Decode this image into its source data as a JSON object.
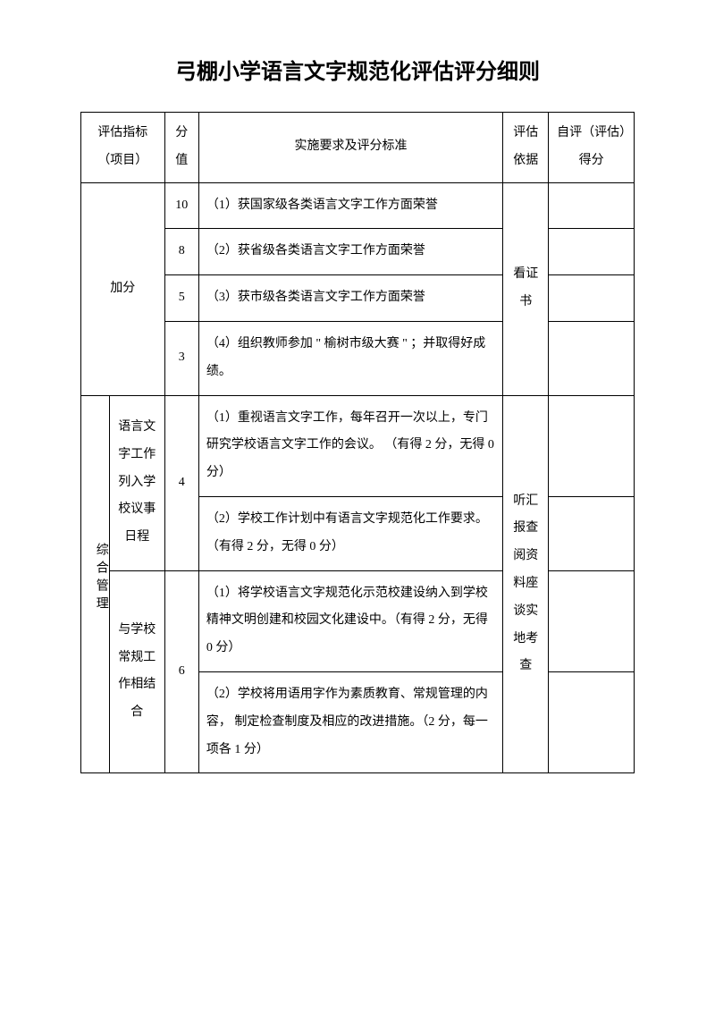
{
  "title": "弓棚小学语言文字规范化评估评分细则",
  "headers": {
    "col_indicator": "评估指标（项目）",
    "col_score": "分值",
    "col_criteria": "实施要求及评分标准",
    "col_basis": "评估依据",
    "col_self": "自评（评估）得分"
  },
  "section_bonus": {
    "label": "加分",
    "basis": "看证书",
    "rows": [
      {
        "score": "10",
        "text": "（1）获国家级各类语言文字工作方面荣誉"
      },
      {
        "score": "8",
        "text": "（2）获省级各类语言文字工作方面荣誉"
      },
      {
        "score": "5",
        "text": "（3）获市级各类语言文字工作方面荣誉"
      },
      {
        "score": "3",
        "text": "（4）组织教师参加 \" 榆树市级大赛 \" ；并取得好成绩。"
      }
    ]
  },
  "section_mgmt": {
    "label": "综合管理",
    "basis": "听汇报查阅资料座谈实地考查",
    "sub1": {
      "label": "语言文字工作列入学校议事日程",
      "score": "4",
      "r1": "（1）重视语言文字工作，每年召开一次以上，专门研究学校语言文字工作的会议。 （有得 2 分，无得 0 分）",
      "r2": "（2）学校工作计划中有语言文字规范化工作要求。（有得  2 分，无得 0 分）"
    },
    "sub2": {
      "label": "与学校常规工作相结合",
      "score": "6",
      "r1": "（1）将学校语言文字规范化示范校建设纳入到学校精神文明创建和校园文化建设中。（有得 2 分，无得 0 分）",
      "r2": "（2）学校将用语用字作为素质教育、常规管理的内容， 制定检查制度及相应的改进措施。（2 分，每一项各  1 分）"
    }
  },
  "style": {
    "background_color": "#ffffff",
    "border_color": "#000000",
    "title_fontsize": 24,
    "cell_fontsize": 14
  }
}
